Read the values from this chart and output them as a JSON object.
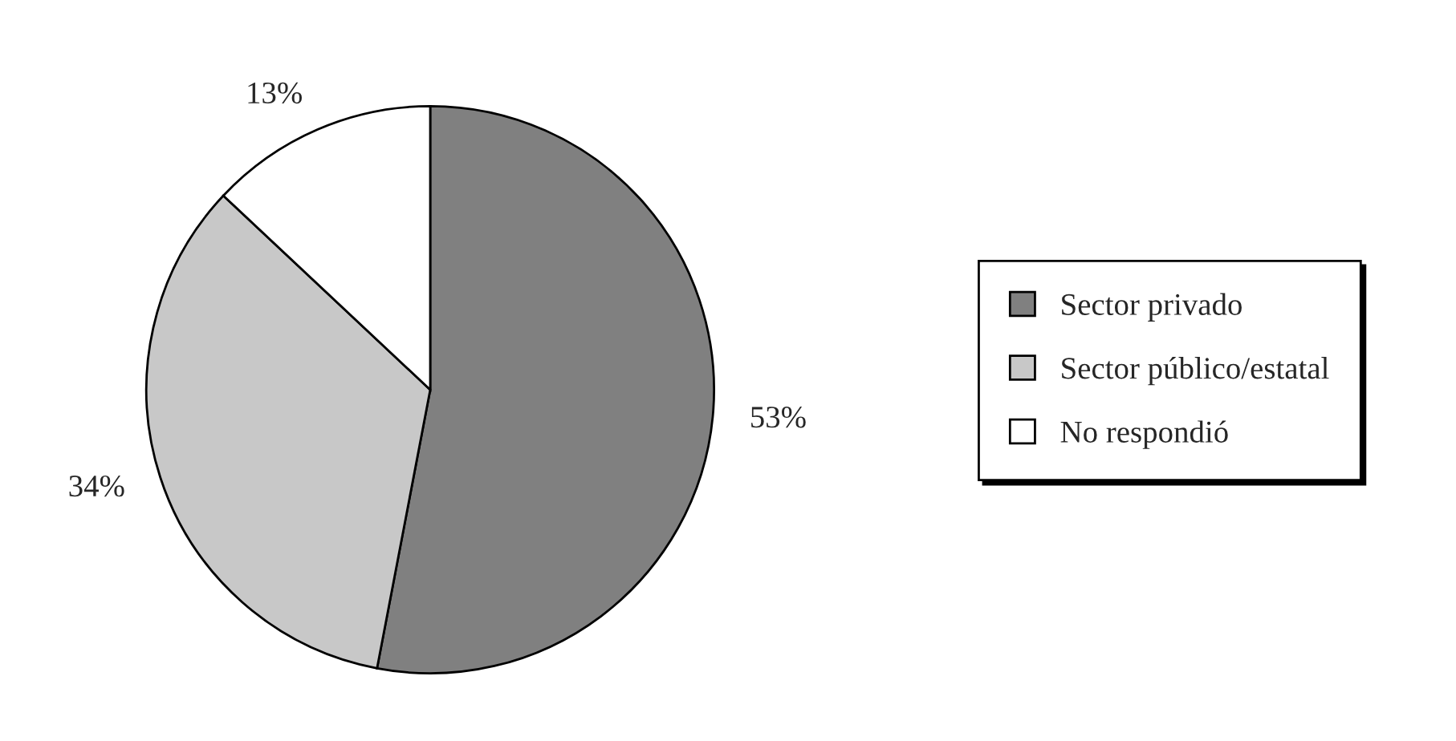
{
  "chart_data": {
    "type": "pie",
    "categories": [
      "Sector privado",
      "Sector público/estatal",
      "No respondió"
    ],
    "values": [
      53,
      34,
      13
    ],
    "value_labels": [
      "53%",
      "34%",
      "13%"
    ],
    "colors": [
      "#808080",
      "#c8c8c8",
      "#ffffff"
    ],
    "legend": "right"
  }
}
